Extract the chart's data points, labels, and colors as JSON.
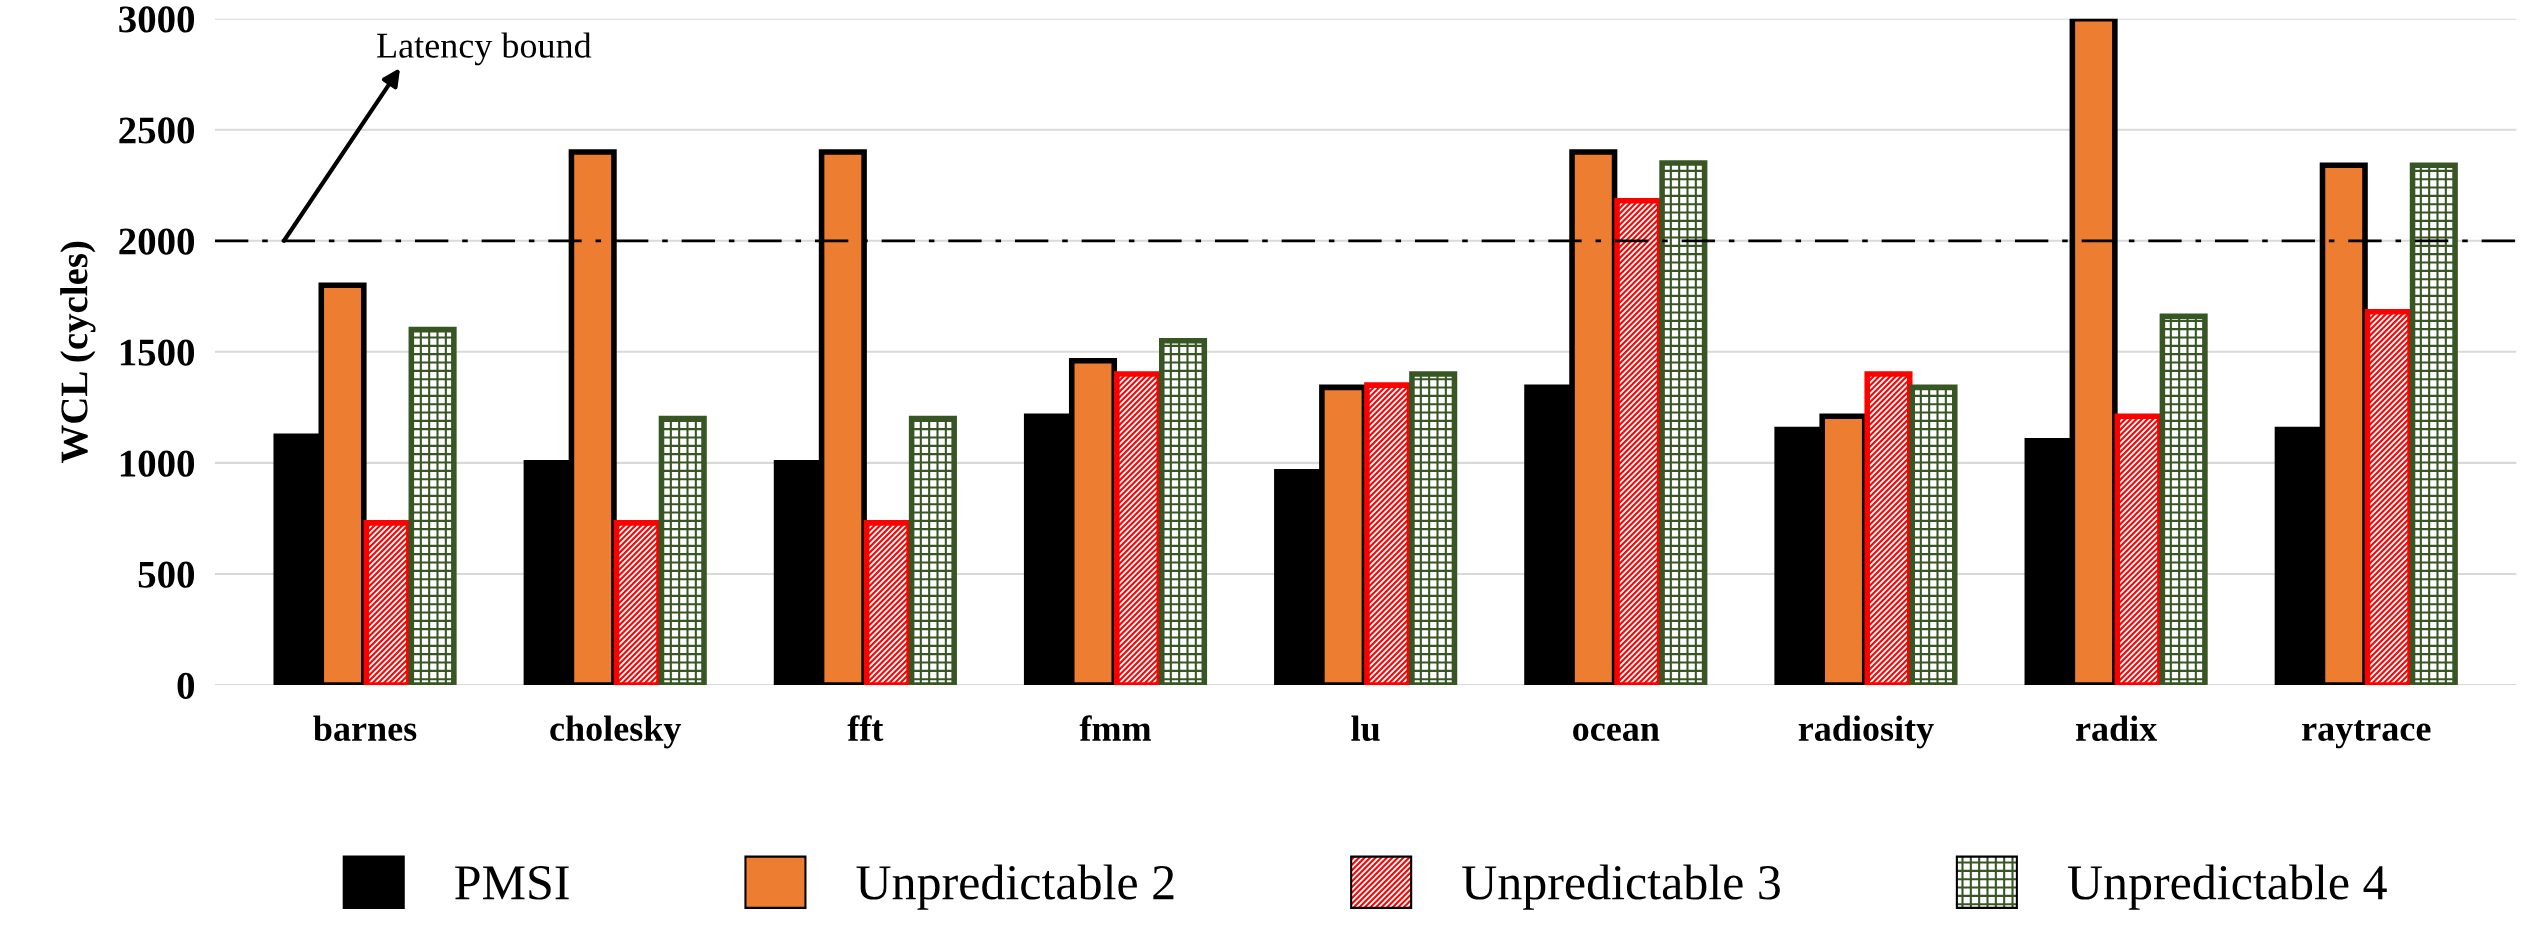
{
  "chart_data": {
    "type": "bar",
    "ylabel": "WCL (cycles)",
    "categories": [
      "barnes",
      "cholesky",
      "fft",
      "fmm",
      "lu",
      "ocean",
      "radiosity",
      "radix",
      "raytrace"
    ],
    "series": [
      {
        "name": "PMSI",
        "color": "#000000",
        "values": [
          1120,
          1000,
          1000,
          1210,
          960,
          1340,
          1150,
          1100,
          1150
        ]
      },
      {
        "name": "Unpredictable 2",
        "color": "#ed7d31",
        "values": [
          1800,
          2400,
          2400,
          1460,
          1340,
          2400,
          1210,
          3000,
          2340
        ]
      },
      {
        "name": "Unpredictable 3",
        "color": "#ff0000",
        "values": [
          730,
          730,
          730,
          1400,
          1350,
          2180,
          1400,
          1210,
          1680
        ]
      },
      {
        "name": "Unpredictable 4",
        "color": "#375623",
        "values": [
          1600,
          1200,
          1200,
          1550,
          1400,
          2350,
          1340,
          1660,
          2340
        ]
      }
    ],
    "ylim": [
      0,
      3000
    ],
    "yticks": [
      0,
      500,
      1000,
      1500,
      2000,
      2500,
      3000
    ],
    "ref_lines": [
      {
        "axis": "y",
        "value": 2000,
        "color": "#000000",
        "line_style": "dashdot"
      }
    ],
    "annotations": [
      "Latency bound"
    ],
    "grid": "y",
    "legend": "bottom"
  }
}
